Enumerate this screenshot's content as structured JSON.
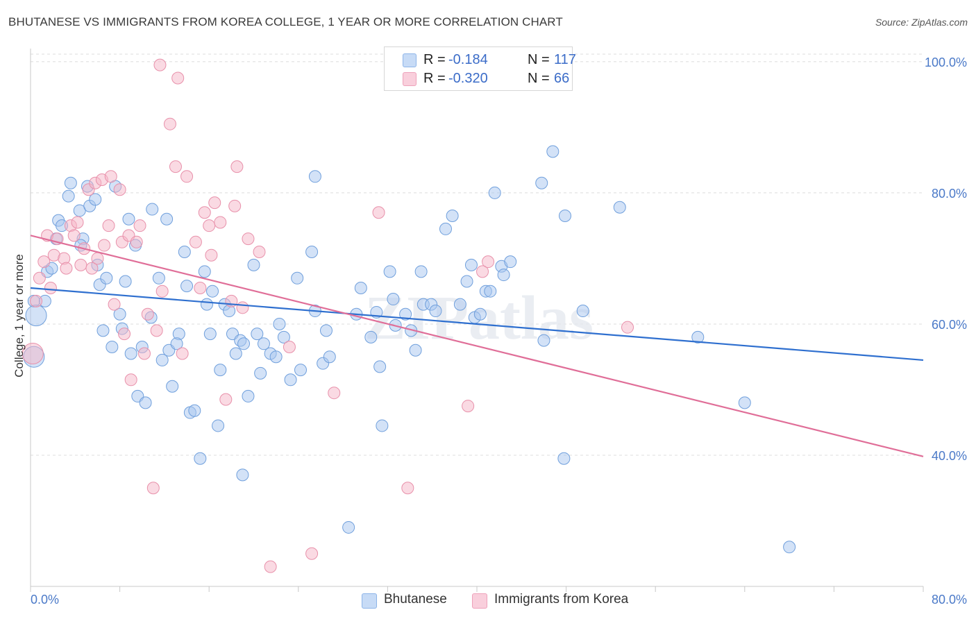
{
  "title": "BHUTANESE VS IMMIGRANTS FROM KOREA COLLEGE, 1 YEAR OR MORE CORRELATION CHART",
  "source": "Source: ZipAtlas.com",
  "watermark": "ZIPatlas",
  "legend": {
    "rows": [
      {
        "r_label": "R =",
        "r_value": "-0.184",
        "n_label": "N =",
        "n_value": "117",
        "color": "#a8c6f0"
      },
      {
        "r_label": "R =",
        "r_value": "-0.320",
        "n_label": "N =",
        "n_value": "66",
        "color": "#f5b5c8"
      }
    ]
  },
  "bottom_legend": [
    "Bhutanese",
    "Immigrants from Korea"
  ],
  "chart_data": {
    "type": "scatter",
    "xlabel": "",
    "ylabel": "College, 1 year or more",
    "xlim": [
      0,
      80
    ],
    "ylim": [
      20,
      102
    ],
    "x_ticks": [
      "0.0%",
      "80.0%"
    ],
    "y_ticks": [
      {
        "value": 100,
        "label": "100.0%"
      },
      {
        "value": 80,
        "label": "80.0%"
      },
      {
        "value": 60,
        "label": "60.0%"
      },
      {
        "value": 40,
        "label": "40.0%"
      }
    ],
    "grid": true,
    "series": [
      {
        "name": "Bhutanese",
        "color": "#a8c6f0",
        "stroke": "#6f9fdc",
        "trend": {
          "x": [
            0,
            80
          ],
          "y": [
            65.5,
            54.5
          ],
          "color": "#2e6fcf"
        },
        "points": [
          [
            0.3,
            63.5
          ],
          [
            0.5,
            61.3
          ],
          [
            0.3,
            55.0
          ],
          [
            1.3,
            63.5
          ],
          [
            1.5,
            68.0
          ],
          [
            1.9,
            68.5
          ],
          [
            2.3,
            73.0
          ],
          [
            2.5,
            75.8
          ],
          [
            2.8,
            75.0
          ],
          [
            3.4,
            79.5
          ],
          [
            3.6,
            81.5
          ],
          [
            4.4,
            77.3
          ],
          [
            4.7,
            73.0
          ],
          [
            4.5,
            72.0
          ],
          [
            5.1,
            81.0
          ],
          [
            5.3,
            78.0
          ],
          [
            5.8,
            79.0
          ],
          [
            6.0,
            69.0
          ],
          [
            6.2,
            66.0
          ],
          [
            6.5,
            59.0
          ],
          [
            6.8,
            67.0
          ],
          [
            7.3,
            56.5
          ],
          [
            7.6,
            81.0
          ],
          [
            8.0,
            61.5
          ],
          [
            8.2,
            59.3
          ],
          [
            8.5,
            66.5
          ],
          [
            8.8,
            76.0
          ],
          [
            9.0,
            55.5
          ],
          [
            9.4,
            72.0
          ],
          [
            9.6,
            49.0
          ],
          [
            10.0,
            56.5
          ],
          [
            10.3,
            48.0
          ],
          [
            10.8,
            61.0
          ],
          [
            10.9,
            77.5
          ],
          [
            11.5,
            67.0
          ],
          [
            11.8,
            54.5
          ],
          [
            12.2,
            76.0
          ],
          [
            12.4,
            56.0
          ],
          [
            12.7,
            50.5
          ],
          [
            13.3,
            58.5
          ],
          [
            13.1,
            57.0
          ],
          [
            13.8,
            71.0
          ],
          [
            14.0,
            65.8
          ],
          [
            14.3,
            46.5
          ],
          [
            14.7,
            46.8
          ],
          [
            15.2,
            39.5
          ],
          [
            15.6,
            68.0
          ],
          [
            15.8,
            63.0
          ],
          [
            16.1,
            58.5
          ],
          [
            16.3,
            65.0
          ],
          [
            16.8,
            44.5
          ],
          [
            17.0,
            53.0
          ],
          [
            17.4,
            63.0
          ],
          [
            17.8,
            62.0
          ],
          [
            18.1,
            58.5
          ],
          [
            18.4,
            55.5
          ],
          [
            18.8,
            57.5
          ],
          [
            19.1,
            57.0
          ],
          [
            19.0,
            37.0
          ],
          [
            19.5,
            49.0
          ],
          [
            20.0,
            69.0
          ],
          [
            20.3,
            58.5
          ],
          [
            20.6,
            52.5
          ],
          [
            20.9,
            57.0
          ],
          [
            21.5,
            55.5
          ],
          [
            22.0,
            55.0
          ],
          [
            22.3,
            60.0
          ],
          [
            22.7,
            58.0
          ],
          [
            23.3,
            51.5
          ],
          [
            23.9,
            67.0
          ],
          [
            24.2,
            53.0
          ],
          [
            25.2,
            71.0
          ],
          [
            25.5,
            62.0
          ],
          [
            26.2,
            54.0
          ],
          [
            26.5,
            59.0
          ],
          [
            26.8,
            55.0
          ],
          [
            28.5,
            29.0
          ],
          [
            29.2,
            61.5
          ],
          [
            29.6,
            65.5
          ],
          [
            30.5,
            58.0
          ],
          [
            31.0,
            61.8
          ],
          [
            31.3,
            53.5
          ],
          [
            31.5,
            44.5
          ],
          [
            32.2,
            68.0
          ],
          [
            32.5,
            63.8
          ],
          [
            33.6,
            61.5
          ],
          [
            34.1,
            59.0
          ],
          [
            34.5,
            56.0
          ],
          [
            35.0,
            68.0
          ],
          [
            35.2,
            63.0
          ],
          [
            35.9,
            63.0
          ],
          [
            36.3,
            62.0
          ],
          [
            37.2,
            74.5
          ],
          [
            37.8,
            76.5
          ],
          [
            38.5,
            63.0
          ],
          [
            39.1,
            66.5
          ],
          [
            39.5,
            69.0
          ],
          [
            39.8,
            61.0
          ],
          [
            40.3,
            61.5
          ],
          [
            40.8,
            65.0
          ],
          [
            41.2,
            65.0
          ],
          [
            41.6,
            80.0
          ],
          [
            42.2,
            68.8
          ],
          [
            42.4,
            67.5
          ],
          [
            43.0,
            69.5
          ],
          [
            45.8,
            81.5
          ],
          [
            46.0,
            57.5
          ],
          [
            46.8,
            86.3
          ],
          [
            47.8,
            39.5
          ],
          [
            47.9,
            76.5
          ],
          [
            49.5,
            62.0
          ],
          [
            52.8,
            77.8
          ],
          [
            59.8,
            58.0
          ],
          [
            64.0,
            48.0
          ],
          [
            68.0,
            26.0
          ],
          [
            32.7,
            59.8
          ],
          [
            25.5,
            82.5
          ]
        ]
      },
      {
        "name": "Immigrants from Korea",
        "color": "#f5b5c8",
        "stroke": "#e890aa",
        "trend": {
          "x": [
            0,
            80
          ],
          "y": [
            73.5,
            39.8
          ],
          "color": "#e06e98"
        },
        "points": [
          [
            0.2,
            55.5
          ],
          [
            0.5,
            63.5
          ],
          [
            0.8,
            67.0
          ],
          [
            1.2,
            69.5
          ],
          [
            1.5,
            73.5
          ],
          [
            1.8,
            65.5
          ],
          [
            2.1,
            70.5
          ],
          [
            2.4,
            73.0
          ],
          [
            3.0,
            70.0
          ],
          [
            3.2,
            68.5
          ],
          [
            3.6,
            75.0
          ],
          [
            3.9,
            73.5
          ],
          [
            4.2,
            75.5
          ],
          [
            4.5,
            69.0
          ],
          [
            4.8,
            71.5
          ],
          [
            5.2,
            80.5
          ],
          [
            5.5,
            68.5
          ],
          [
            5.8,
            81.5
          ],
          [
            6.0,
            70.0
          ],
          [
            6.4,
            82.0
          ],
          [
            6.6,
            72.0
          ],
          [
            7.0,
            75.0
          ],
          [
            7.2,
            82.5
          ],
          [
            7.5,
            63.0
          ],
          [
            8.0,
            80.5
          ],
          [
            8.2,
            72.5
          ],
          [
            8.4,
            58.5
          ],
          [
            8.8,
            73.5
          ],
          [
            9.0,
            51.5
          ],
          [
            9.5,
            72.5
          ],
          [
            9.8,
            75.0
          ],
          [
            10.2,
            55.5
          ],
          [
            10.5,
            61.5
          ],
          [
            11.0,
            35.0
          ],
          [
            11.3,
            59.0
          ],
          [
            11.6,
            99.5
          ],
          [
            11.8,
            65.0
          ],
          [
            12.5,
            90.5
          ],
          [
            13.0,
            84.0
          ],
          [
            13.2,
            97.5
          ],
          [
            13.6,
            55.5
          ],
          [
            14.0,
            82.5
          ],
          [
            14.8,
            72.5
          ],
          [
            15.2,
            65.5
          ],
          [
            15.6,
            77.0
          ],
          [
            16.0,
            75.0
          ],
          [
            16.5,
            78.5
          ],
          [
            17.0,
            75.5
          ],
          [
            17.5,
            48.5
          ],
          [
            18.0,
            63.5
          ],
          [
            18.5,
            84.0
          ],
          [
            19.0,
            62.5
          ],
          [
            19.5,
            73.0
          ],
          [
            20.5,
            71.0
          ],
          [
            21.5,
            23.0
          ],
          [
            23.2,
            56.5
          ],
          [
            25.2,
            25.0
          ],
          [
            27.2,
            49.5
          ],
          [
            31.2,
            77.0
          ],
          [
            33.8,
            35.0
          ],
          [
            39.2,
            47.5
          ],
          [
            41.0,
            69.5
          ],
          [
            40.5,
            68.0
          ],
          [
            53.5,
            59.5
          ],
          [
            18.3,
            78.0
          ],
          [
            16.2,
            70.5
          ]
        ]
      }
    ]
  }
}
